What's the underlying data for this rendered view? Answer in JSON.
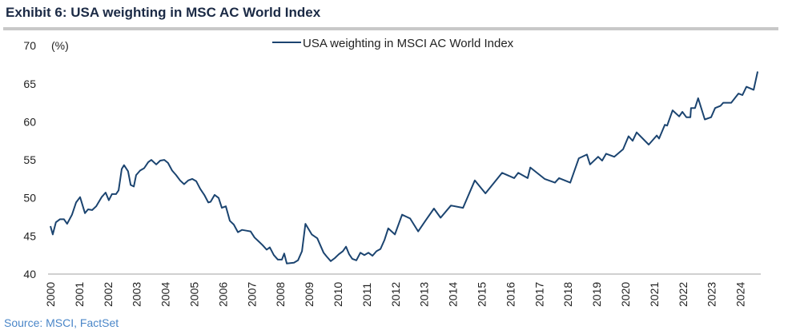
{
  "title": "Exhibit 6: USA weighting in MSC AC World Index",
  "source": "Source: MSCI, FactSet",
  "chart_data": {
    "type": "line",
    "title": "Exhibit 6: USA weighting in MSC AC World Index",
    "ylabel": "(%)",
    "xlabel": "",
    "ylim": [
      40,
      70
    ],
    "xlim": [
      2000,
      2024.6
    ],
    "yticks": [
      40,
      45,
      50,
      55,
      60,
      65,
      70
    ],
    "xticks": [
      2000,
      2001,
      2002,
      2003,
      2004,
      2005,
      2006,
      2007,
      2008,
      2009,
      2010,
      2011,
      2012,
      2013,
      2014,
      2015,
      2016,
      2017,
      2018,
      2019,
      2020,
      2021,
      2022,
      2023,
      2024
    ],
    "grid": false,
    "legend_position": "top-center",
    "color": "#1b4470",
    "series": [
      {
        "name": "USA weighting in MSCI AC World Index",
        "x": [
          2000.0,
          2000.08,
          2000.19,
          2000.33,
          2000.47,
          2000.58,
          2000.75,
          2000.89,
          2001.03,
          2001.2,
          2001.31,
          2001.45,
          2001.59,
          2001.78,
          2001.92,
          2002.03,
          2002.14,
          2002.28,
          2002.37,
          2002.48,
          2002.56,
          2002.7,
          2002.79,
          2002.9,
          2002.98,
          2003.12,
          2003.26,
          2003.4,
          2003.51,
          2003.68,
          2003.82,
          2003.96,
          2004.09,
          2004.23,
          2004.37,
          2004.51,
          2004.65,
          2004.79,
          2004.93,
          2005.07,
          2005.21,
          2005.35,
          2005.49,
          2005.57,
          2005.71,
          2005.85,
          2005.96,
          2006.1,
          2006.24,
          2006.38,
          2006.52,
          2006.66,
          2006.82,
          2006.96,
          2007.1,
          2007.24,
          2007.38,
          2007.52,
          2007.63,
          2007.77,
          2007.91,
          2008.05,
          2008.13,
          2008.22,
          2008.47,
          2008.61,
          2008.75,
          2008.87,
          2009.09,
          2009.28,
          2009.5,
          2009.61,
          2009.75,
          2009.89,
          2010.03,
          2010.17,
          2010.28,
          2010.39,
          2010.5,
          2010.64,
          2010.78,
          2010.92,
          2011.06,
          2011.2,
          2011.34,
          2011.48,
          2011.62,
          2011.75,
          2011.98,
          2012.23,
          2012.51,
          2012.79,
          2013.06,
          2013.34,
          2013.57,
          2013.93,
          2014.35,
          2014.76,
          2015.13,
          2015.71,
          2016.13,
          2016.27,
          2016.6,
          2016.69,
          2017.19,
          2017.55,
          2017.69,
          2018.08,
          2018.38,
          2018.66,
          2018.77,
          2019.05,
          2019.19,
          2019.33,
          2019.61,
          2019.92,
          2020.11,
          2020.25,
          2020.39,
          2020.81,
          2021.09,
          2021.17,
          2021.37,
          2021.45,
          2021.64,
          2021.87,
          2021.98,
          2022.12,
          2022.26,
          2022.28,
          2022.42,
          2022.53,
          2022.76,
          2022.98,
          2023.12,
          2023.31,
          2023.4,
          2023.68,
          2023.93,
          2024.07,
          2024.21,
          2024.46,
          2024.6
        ],
        "values": [
          46.3,
          45.2,
          46.8,
          47.2,
          47.2,
          46.6,
          47.8,
          49.4,
          50.1,
          48.0,
          48.5,
          48.4,
          48.9,
          50.1,
          50.7,
          49.7,
          50.5,
          50.5,
          51.0,
          53.8,
          54.3,
          53.5,
          51.7,
          51.5,
          53.0,
          53.6,
          53.9,
          54.7,
          55.0,
          54.4,
          54.9,
          55.0,
          54.6,
          53.6,
          53.0,
          52.3,
          51.8,
          52.3,
          52.5,
          52.2,
          51.2,
          50.4,
          49.4,
          49.5,
          50.4,
          50.0,
          48.7,
          48.9,
          47.0,
          46.5,
          45.5,
          45.8,
          45.7,
          45.6,
          44.8,
          44.3,
          43.8,
          43.2,
          43.5,
          42.5,
          41.9,
          41.9,
          42.7,
          41.4,
          41.5,
          41.8,
          43.0,
          46.6,
          45.2,
          44.7,
          42.8,
          42.3,
          41.7,
          42.1,
          42.6,
          43.0,
          43.6,
          42.6,
          42.0,
          41.8,
          42.8,
          42.5,
          42.8,
          42.4,
          43.0,
          43.3,
          44.5,
          46.0,
          45.2,
          47.8,
          47.3,
          45.6,
          47.1,
          48.6,
          47.4,
          49.0,
          48.7,
          52.3,
          50.6,
          53.3,
          52.6,
          53.3,
          52.6,
          54.0,
          52.5,
          52.0,
          52.6,
          52.0,
          55.2,
          55.7,
          54.4,
          55.4,
          54.9,
          55.8,
          55.4,
          56.4,
          58.1,
          57.5,
          58.6,
          57.0,
          58.2,
          57.8,
          59.6,
          59.5,
          61.5,
          60.7,
          61.3,
          60.6,
          60.6,
          61.8,
          61.8,
          63.1,
          60.3,
          60.6,
          61.8,
          62.1,
          62.5,
          62.5,
          63.7,
          63.5,
          64.6,
          64.2,
          66.6
        ]
      }
    ]
  }
}
